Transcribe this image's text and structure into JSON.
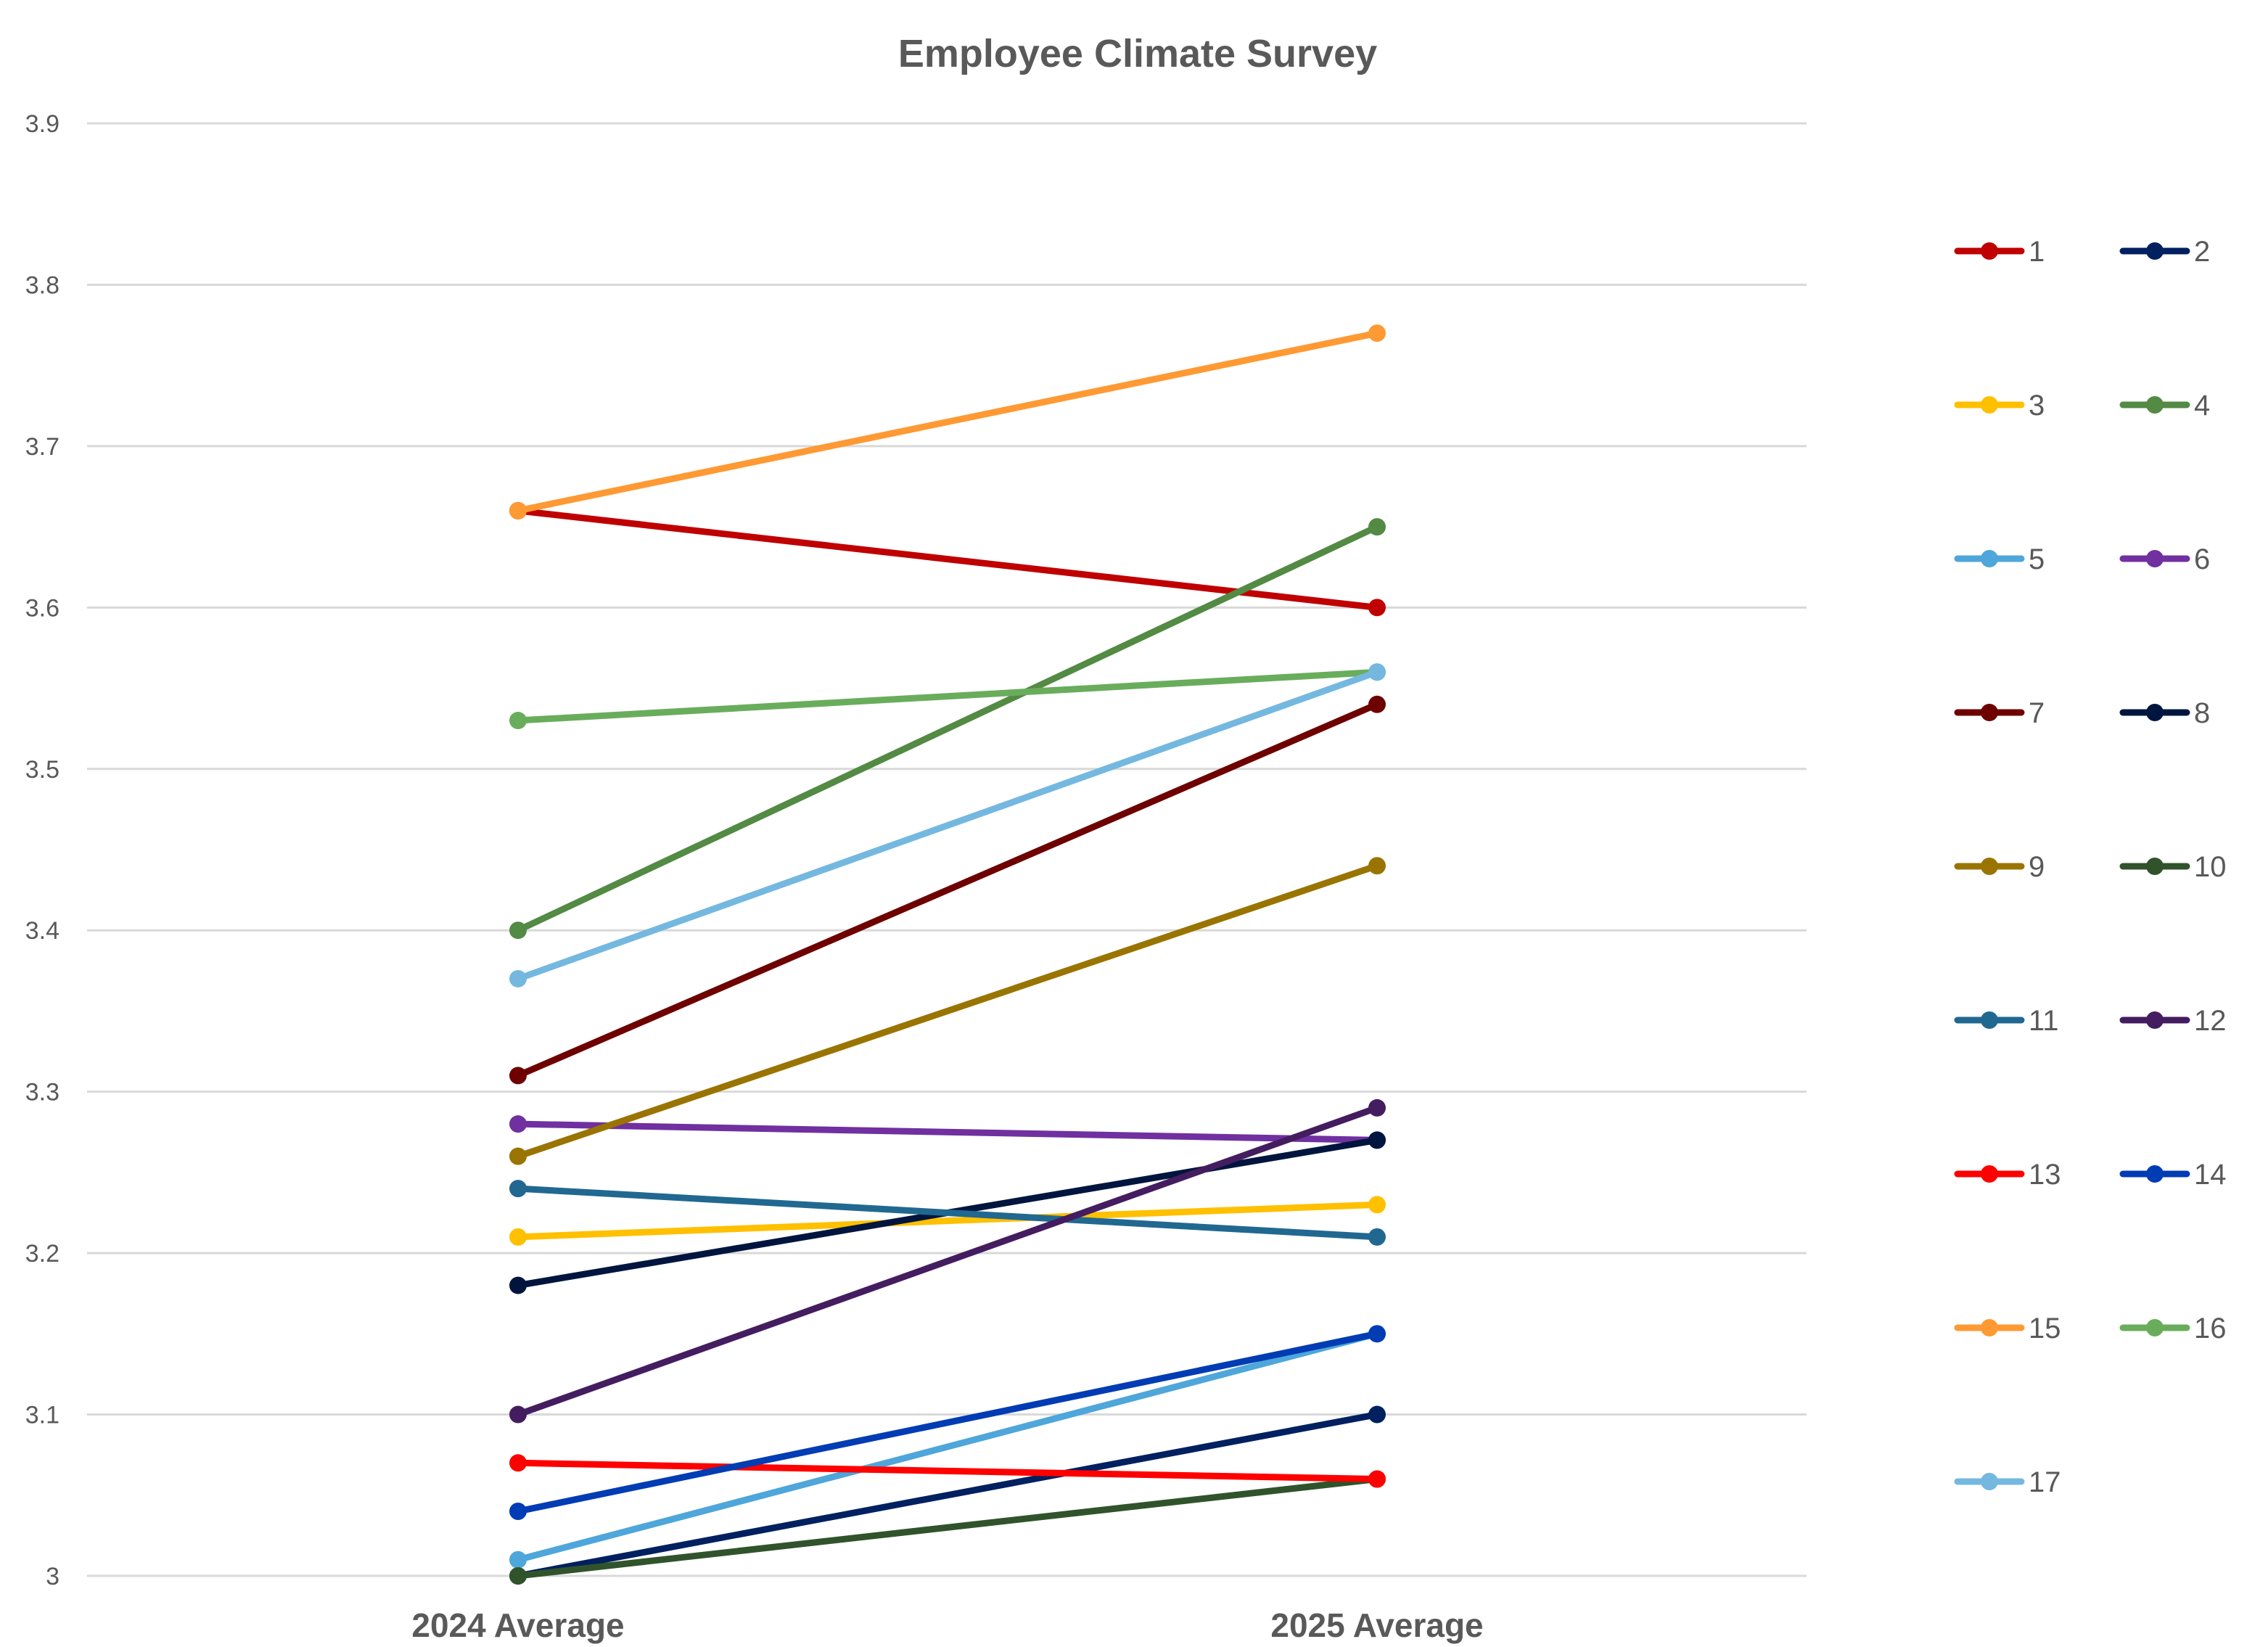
{
  "chart_data": {
    "type": "line",
    "title": "Employee Climate Survey",
    "xlabel": "",
    "ylabel": "",
    "categories": [
      "2024 Average",
      "2025 Average"
    ],
    "ylim": [
      3.0,
      3.9
    ],
    "yticks": [
      3,
      3.1,
      3.2,
      3.3,
      3.4,
      3.5,
      3.6,
      3.7,
      3.8,
      3.9
    ],
    "ytick_labels": [
      "3",
      "3.1",
      "3.2",
      "3.3",
      "3.4",
      "3.5",
      "3.6",
      "3.7",
      "3.8",
      "3.9"
    ],
    "grid": true,
    "legend_position": "right",
    "series": [
      {
        "name": "1",
        "color": "#C00000",
        "values": [
          3.66,
          3.6
        ]
      },
      {
        "name": "2",
        "color": "#002060",
        "values": [
          3.0,
          3.1
        ]
      },
      {
        "name": "3",
        "color": "#FFC000",
        "values": [
          3.21,
          3.23
        ]
      },
      {
        "name": "4",
        "color": "#538A44",
        "values": [
          3.4,
          3.65
        ]
      },
      {
        "name": "5",
        "color": "#4EA6DA",
        "values": [
          3.01,
          3.15
        ]
      },
      {
        "name": "6",
        "color": "#7030A0",
        "values": [
          3.28,
          3.27
        ]
      },
      {
        "name": "7",
        "color": "#6E0000",
        "values": [
          3.31,
          3.54
        ]
      },
      {
        "name": "8",
        "color": "#00153E",
        "values": [
          3.18,
          3.27
        ]
      },
      {
        "name": "9",
        "color": "#9A7400",
        "values": [
          3.26,
          3.44
        ]
      },
      {
        "name": "10",
        "color": "#30532B",
        "values": [
          3.0,
          3.06
        ]
      },
      {
        "name": "11",
        "color": "#216891",
        "values": [
          3.24,
          3.21
        ]
      },
      {
        "name": "12",
        "color": "#441D60",
        "values": [
          3.1,
          3.29
        ]
      },
      {
        "name": "13",
        "color": "#FF0000",
        "values": [
          3.07,
          3.06
        ]
      },
      {
        "name": "14",
        "color": "#003CB4",
        "values": [
          3.04,
          3.15
        ]
      },
      {
        "name": "15",
        "color": "#FF9933",
        "values": [
          3.66,
          3.77
        ]
      },
      {
        "name": "16",
        "color": "#69AD5C",
        "values": [
          3.53,
          3.56
        ]
      },
      {
        "name": "17",
        "color": "#74B8E0",
        "values": [
          3.37,
          3.56
        ]
      }
    ]
  }
}
